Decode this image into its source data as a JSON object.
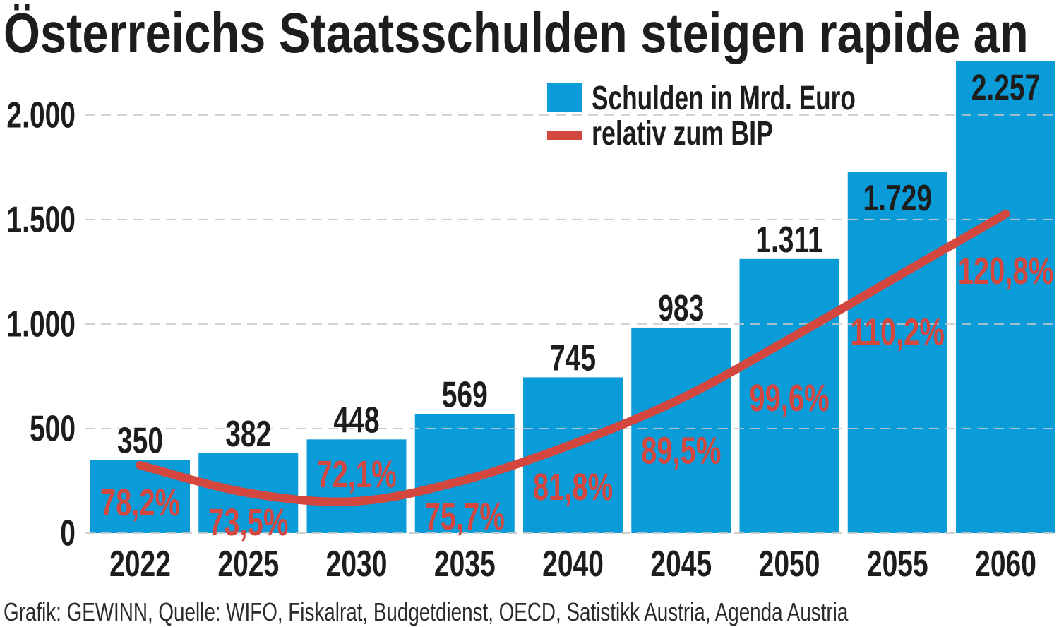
{
  "colors": {
    "bar": "#0a9bd9",
    "line": "#d4473e",
    "text": "#1d1d1b",
    "footer": "#2b2b2b",
    "grid": "#c8c8c8",
    "background": "#ffffff"
  },
  "chart_data": {
    "type": "bar",
    "title": "Österreichs Staatsschulden steigen rapide an",
    "source": "Grafik: GEWINN, Quelle: WIFO, Fiskalrat, Budgetdienst, OECD, Satistikk Austria, Agenda Austria",
    "xlabel": "",
    "ylabel": "",
    "categories": [
      "2022",
      "2025",
      "2030",
      "2035",
      "2040",
      "2045",
      "2050",
      "2055",
      "2060"
    ],
    "series": [
      {
        "name": "Schulden in Mrd. Euro",
        "type": "bar",
        "values": [
          350,
          382,
          448,
          569,
          745,
          983,
          1311,
          1729,
          2257
        ],
        "labels": [
          "350",
          "382",
          "448",
          "569",
          "745",
          "983",
          "1.311",
          "1.729",
          "2.257"
        ]
      },
      {
        "name": "relativ zum BIP",
        "type": "line",
        "values": [
          78.2,
          73.5,
          72.1,
          75.7,
          81.8,
          89.5,
          99.6,
          110.2,
          120.8
        ],
        "labels": [
          "78,2%",
          "73,5%",
          "72,1%",
          "75,7%",
          "81,8%",
          "89,5%",
          "99,6%",
          "110,2%",
          "120,8%"
        ]
      }
    ],
    "yticks": [
      0,
      500,
      1000,
      1500,
      2000
    ],
    "ytick_labels": [
      "0",
      "500",
      "1.000",
      "1.500",
      "2.000"
    ],
    "ylim": [
      0,
      2300
    ],
    "y2lim": [
      66.7,
      148.2
    ],
    "grid": true,
    "legend": "top-right"
  }
}
